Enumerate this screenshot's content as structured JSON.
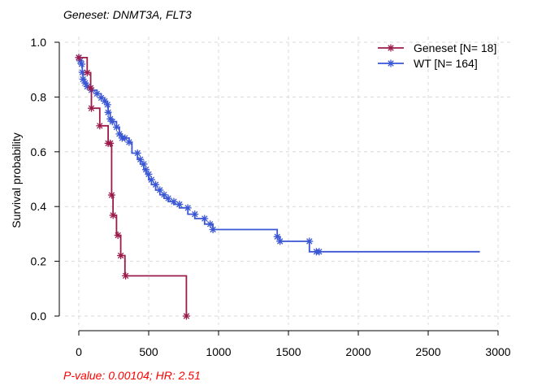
{
  "chart_data": {
    "type": "line",
    "subtype": "kaplan-meier survival curve",
    "title": "Geneset: DNMT3A, FLT3",
    "xlabel": "",
    "ylabel": "Survival probability",
    "xlim": [
      -100,
      3000
    ],
    "ylim": [
      0.0,
      1.0
    ],
    "xticks": [
      "0",
      "500",
      "1000",
      "1500",
      "2000",
      "2500",
      "3000"
    ],
    "yticks": [
      "0.0",
      "0.2",
      "0.4",
      "0.6",
      "0.8",
      "1.0"
    ],
    "grid": true,
    "legend_position": "top-right",
    "footnote": "P-value: 0.00104; HR: 2.51",
    "footnote_color": "#ff0000",
    "series": [
      {
        "name": "Geneset [N= 18]",
        "color": "#9b1c4b",
        "steps": [
          [
            0,
            0.944
          ],
          [
            60,
            0.944
          ],
          [
            60,
            0.889
          ],
          [
            85,
            0.889
          ],
          [
            85,
            0.833
          ],
          [
            90,
            0.833
          ],
          [
            90,
            0.759
          ],
          [
            150,
            0.759
          ],
          [
            150,
            0.695
          ],
          [
            210,
            0.695
          ],
          [
            210,
            0.631
          ],
          [
            235,
            0.631
          ],
          [
            235,
            0.442
          ],
          [
            245,
            0.442
          ],
          [
            245,
            0.368
          ],
          [
            270,
            0.368
          ],
          [
            270,
            0.295
          ],
          [
            300,
            0.295
          ],
          [
            300,
            0.221
          ],
          [
            330,
            0.221
          ],
          [
            330,
            0.147
          ],
          [
            770,
            0.147
          ],
          [
            770,
            0.0
          ]
        ],
        "censor_marks": [
          [
            0,
            0.944
          ],
          [
            60,
            0.889
          ],
          [
            85,
            0.833
          ],
          [
            90,
            0.759
          ],
          [
            150,
            0.695
          ],
          [
            210,
            0.631
          ],
          [
            225,
            0.631
          ],
          [
            235,
            0.442
          ],
          [
            245,
            0.368
          ],
          [
            280,
            0.295
          ],
          [
            300,
            0.221
          ],
          [
            335,
            0.147
          ],
          [
            770,
            0.0
          ]
        ]
      },
      {
        "name": "WT [N= 164]",
        "color": "#3a56d4",
        "steps": [
          [
            0,
            0.944
          ],
          [
            10,
            0.944
          ],
          [
            10,
            0.932
          ],
          [
            20,
            0.932
          ],
          [
            20,
            0.92
          ],
          [
            25,
            0.92
          ],
          [
            25,
            0.89
          ],
          [
            30,
            0.89
          ],
          [
            30,
            0.865
          ],
          [
            45,
            0.865
          ],
          [
            45,
            0.851
          ],
          [
            60,
            0.851
          ],
          [
            60,
            0.838
          ],
          [
            90,
            0.838
          ],
          [
            90,
            0.825
          ],
          [
            130,
            0.825
          ],
          [
            130,
            0.812
          ],
          [
            160,
            0.812
          ],
          [
            160,
            0.797
          ],
          [
            185,
            0.797
          ],
          [
            185,
            0.785
          ],
          [
            205,
            0.785
          ],
          [
            205,
            0.772
          ],
          [
            210,
            0.772
          ],
          [
            210,
            0.744
          ],
          [
            225,
            0.744
          ],
          [
            225,
            0.72
          ],
          [
            240,
            0.72
          ],
          [
            240,
            0.71
          ],
          [
            270,
            0.71
          ],
          [
            270,
            0.69
          ],
          [
            290,
            0.69
          ],
          [
            290,
            0.665
          ],
          [
            310,
            0.665
          ],
          [
            310,
            0.65
          ],
          [
            360,
            0.65
          ],
          [
            360,
            0.635
          ],
          [
            380,
            0.635
          ],
          [
            380,
            0.595
          ],
          [
            420,
            0.595
          ],
          [
            420,
            0.572
          ],
          [
            440,
            0.572
          ],
          [
            440,
            0.555
          ],
          [
            465,
            0.555
          ],
          [
            465,
            0.535
          ],
          [
            480,
            0.535
          ],
          [
            480,
            0.518
          ],
          [
            500,
            0.518
          ],
          [
            500,
            0.498
          ],
          [
            520,
            0.498
          ],
          [
            520,
            0.48
          ],
          [
            550,
            0.48
          ],
          [
            550,
            0.46
          ],
          [
            580,
            0.46
          ],
          [
            580,
            0.443
          ],
          [
            610,
            0.443
          ],
          [
            610,
            0.43
          ],
          [
            640,
            0.43
          ],
          [
            640,
            0.418
          ],
          [
            680,
            0.418
          ],
          [
            680,
            0.408
          ],
          [
            720,
            0.408
          ],
          [
            720,
            0.395
          ],
          [
            780,
            0.395
          ],
          [
            780,
            0.372
          ],
          [
            830,
            0.372
          ],
          [
            830,
            0.356
          ],
          [
            900,
            0.356
          ],
          [
            900,
            0.336
          ],
          [
            960,
            0.336
          ],
          [
            960,
            0.316
          ],
          [
            1420,
            0.316
          ],
          [
            1420,
            0.29
          ],
          [
            1440,
            0.29
          ],
          [
            1440,
            0.273
          ],
          [
            1650,
            0.273
          ],
          [
            1650,
            0.235
          ],
          [
            2870,
            0.235
          ]
        ],
        "censor_marks": [
          [
            0,
            0.944
          ],
          [
            10,
            0.932
          ],
          [
            20,
            0.92
          ],
          [
            25,
            0.89
          ],
          [
            30,
            0.865
          ],
          [
            45,
            0.851
          ],
          [
            60,
            0.838
          ],
          [
            90,
            0.825
          ],
          [
            130,
            0.812
          ],
          [
            160,
            0.797
          ],
          [
            185,
            0.785
          ],
          [
            205,
            0.772
          ],
          [
            210,
            0.744
          ],
          [
            225,
            0.72
          ],
          [
            240,
            0.71
          ],
          [
            270,
            0.69
          ],
          [
            290,
            0.665
          ],
          [
            310,
            0.65
          ],
          [
            330,
            0.65
          ],
          [
            360,
            0.635
          ],
          [
            420,
            0.595
          ],
          [
            440,
            0.572
          ],
          [
            465,
            0.555
          ],
          [
            480,
            0.535
          ],
          [
            500,
            0.518
          ],
          [
            520,
            0.498
          ],
          [
            550,
            0.48
          ],
          [
            580,
            0.46
          ],
          [
            610,
            0.443
          ],
          [
            640,
            0.43
          ],
          [
            680,
            0.418
          ],
          [
            720,
            0.408
          ],
          [
            780,
            0.395
          ],
          [
            830,
            0.372
          ],
          [
            900,
            0.356
          ],
          [
            940,
            0.336
          ],
          [
            960,
            0.316
          ],
          [
            1420,
            0.29
          ],
          [
            1440,
            0.273
          ],
          [
            1650,
            0.273
          ],
          [
            1700,
            0.235
          ],
          [
            1720,
            0.235
          ]
        ]
      }
    ]
  }
}
